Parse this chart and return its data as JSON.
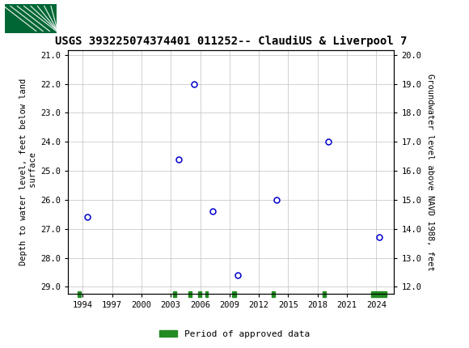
{
  "title": "USGS 393225074374401 011252-- ClaudiUS & Liverpool 7",
  "ylabel_left": "Depth to water level, feet below land\n surface",
  "ylabel_right": "Groundwater level above NAVD 1988, feet",
  "xlim": [
    1992.5,
    2025.8
  ],
  "ylim_left": [
    29.25,
    20.85
  ],
  "ylim_right": [
    11.75,
    20.15
  ],
  "xticks": [
    1994,
    1997,
    2000,
    2003,
    2006,
    2009,
    2012,
    2015,
    2018,
    2021,
    2024
  ],
  "yticks_left": [
    21.0,
    22.0,
    23.0,
    24.0,
    25.0,
    26.0,
    27.0,
    28.0,
    29.0
  ],
  "yticks_right": [
    20.0,
    19.0,
    18.0,
    17.0,
    16.0,
    15.0,
    14.0,
    13.0,
    12.0
  ],
  "data_x": [
    1994.5,
    2003.8,
    2005.4,
    2007.3,
    2009.8,
    2013.8,
    2019.1,
    2024.3
  ],
  "data_y": [
    26.6,
    24.6,
    22.0,
    26.4,
    28.6,
    26.0,
    24.0,
    27.3
  ],
  "marker_color": "#0000CC",
  "marker_face": "#FFFFFF",
  "marker_size": 5,
  "grid_color": "#C0C0C0",
  "header_bg_color": "#006633",
  "legend_label": "Period of approved data",
  "legend_color": "#228B22",
  "approved_data_x": [
    1993.5,
    2003.2,
    2004.8,
    2005.8,
    2006.5,
    2009.3,
    2013.3,
    2018.5,
    2023.5
  ],
  "approved_data_w": [
    0.35,
    0.35,
    0.35,
    0.35,
    0.25,
    0.35,
    0.35,
    0.35,
    1.5
  ],
  "title_fontsize": 10,
  "axis_label_fontsize": 7.5,
  "tick_fontsize": 7.5
}
